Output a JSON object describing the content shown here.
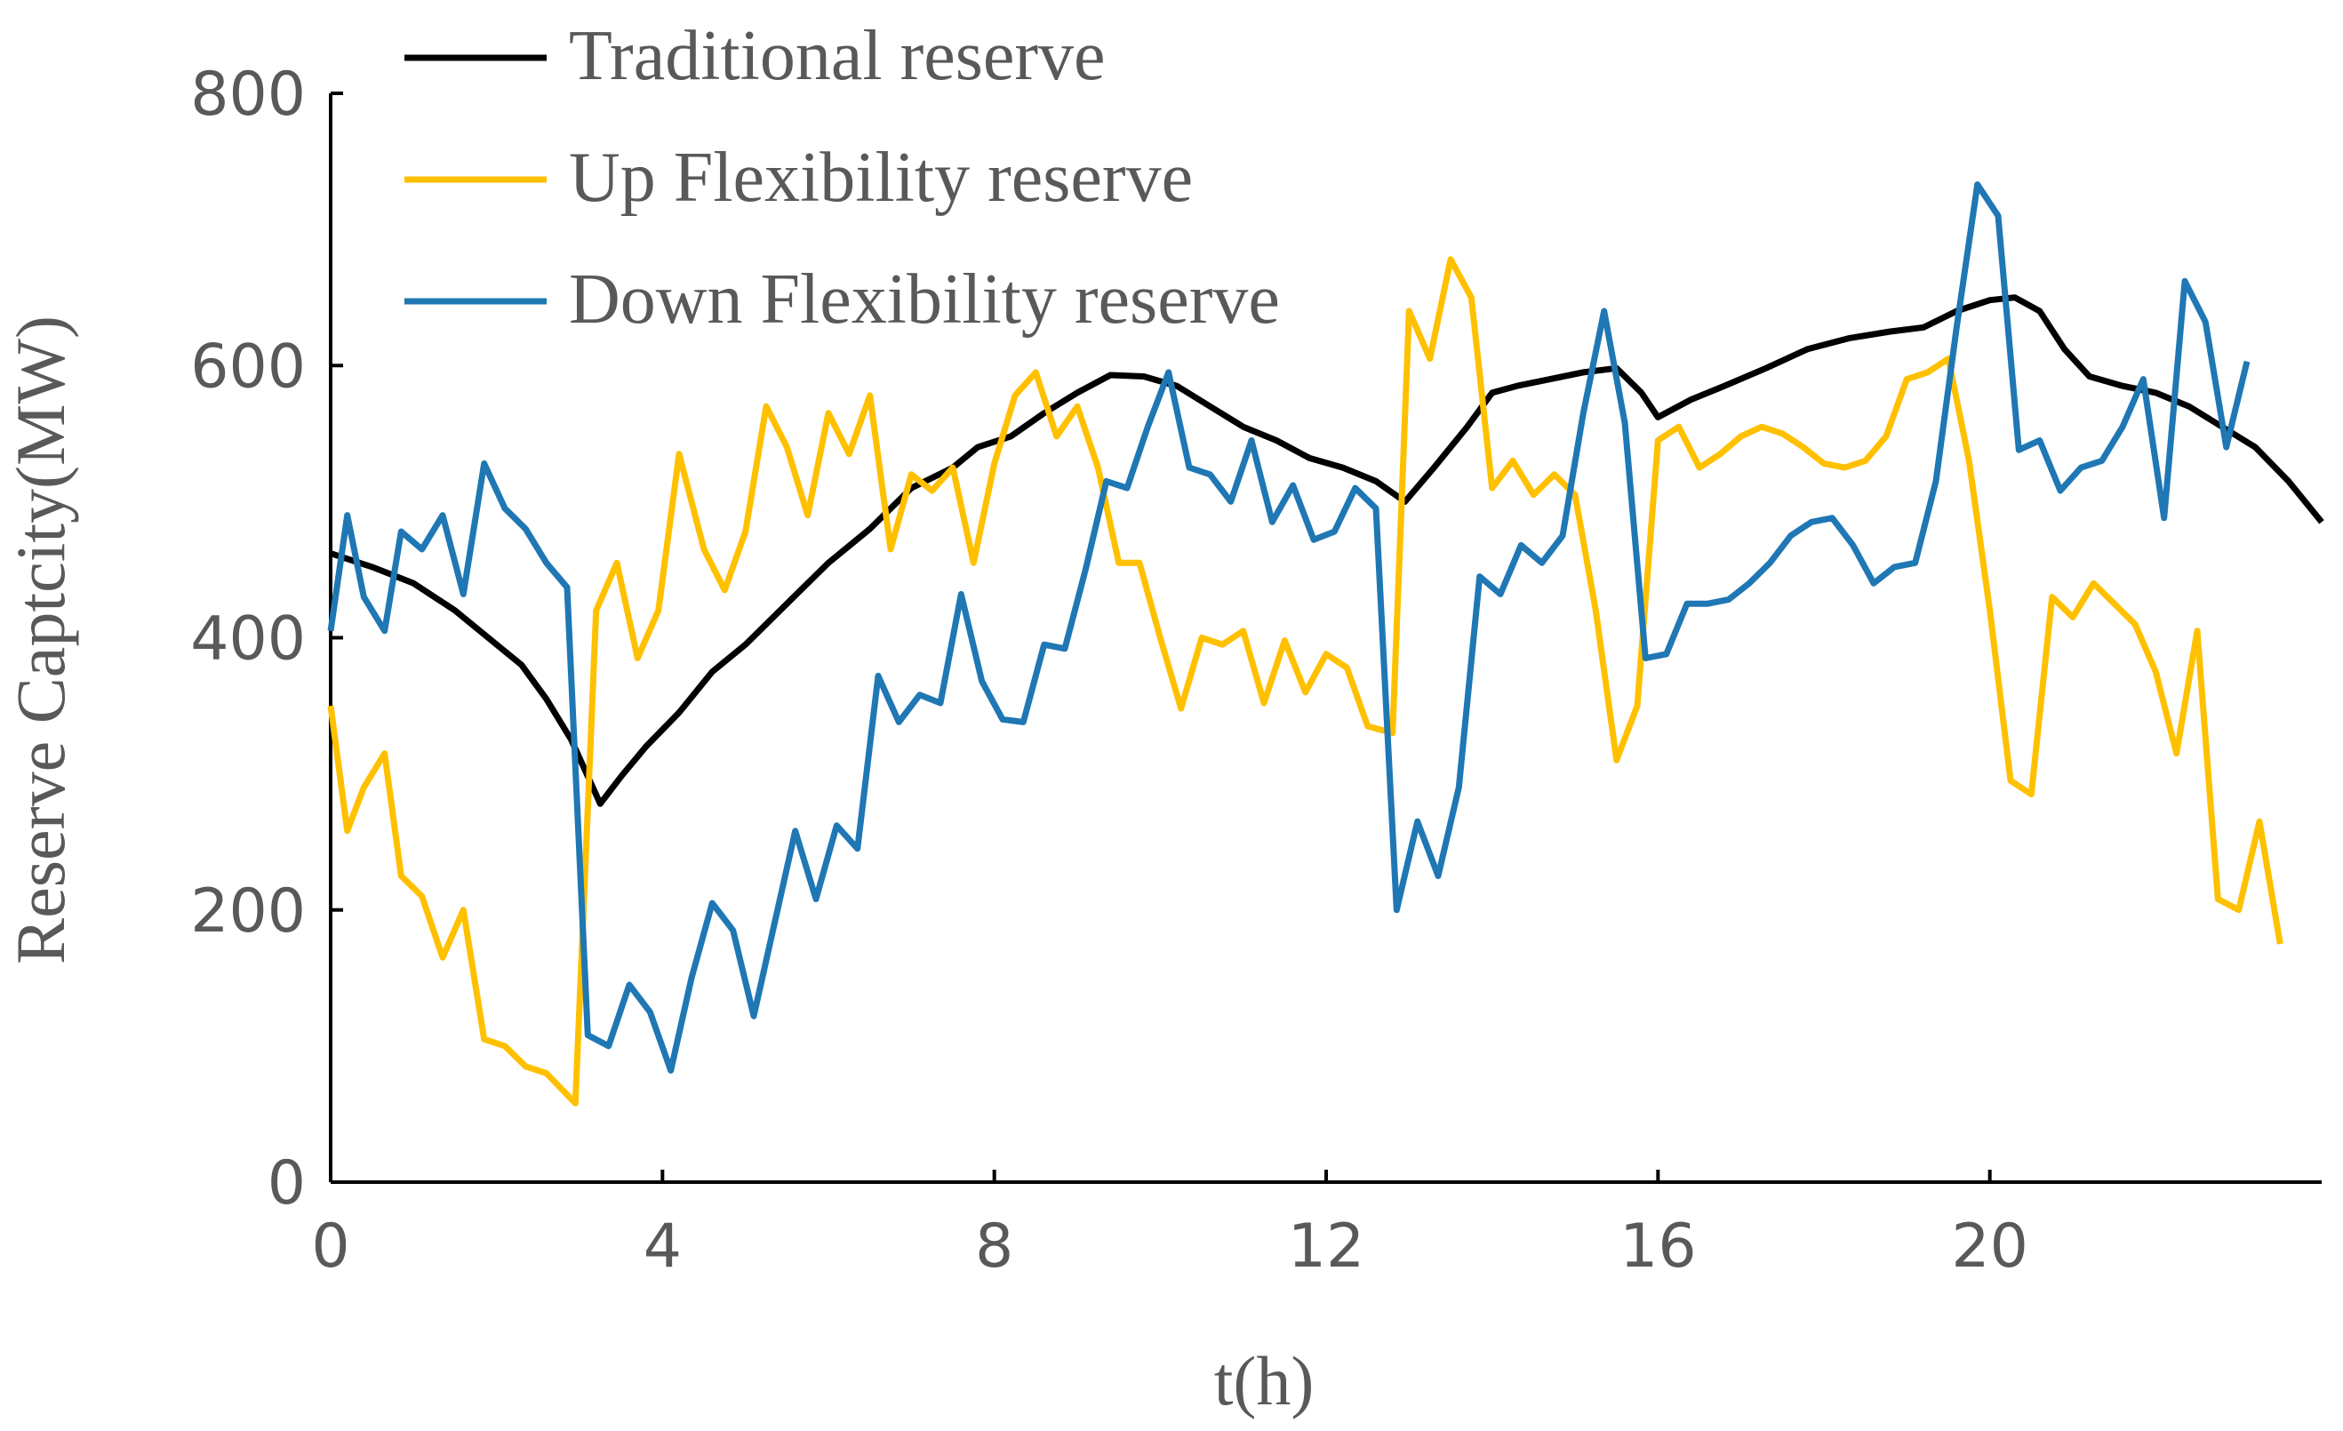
{
  "chart_data": {
    "type": "line",
    "title": "",
    "xlabel": "t(h)",
    "ylabel": "Reserve Captcity(MW)",
    "xlim": [
      0,
      24
    ],
    "ylim": [
      0,
      800
    ],
    "x_ticks": [
      0,
      4,
      8,
      12,
      16,
      20
    ],
    "x_tick_labels": [
      "0",
      "4",
      "8",
      "12",
      "16",
      "20"
    ],
    "y_ticks": [
      0,
      200,
      400,
      600,
      800
    ],
    "y_tick_labels": [
      "0",
      "200",
      "400",
      "600",
      "800"
    ],
    "grid": false,
    "legend_position": "top-left",
    "series": [
      {
        "name": "Traditional reserve",
        "color": "#000000",
        "points": [
          [
            0,
            462
          ],
          [
            0.5,
            452
          ],
          [
            1,
            440
          ],
          [
            1.5,
            420
          ],
          [
            2,
            395
          ],
          [
            2.3,
            380
          ],
          [
            2.6,
            355
          ],
          [
            2.9,
            325
          ],
          [
            3.25,
            278
          ],
          [
            3.5,
            298
          ],
          [
            3.8,
            320
          ],
          [
            4.2,
            345
          ],
          [
            4.6,
            375
          ],
          [
            5,
            395
          ],
          [
            5.5,
            425
          ],
          [
            6,
            455
          ],
          [
            6.5,
            480
          ],
          [
            7,
            510
          ],
          [
            7.5,
            525
          ],
          [
            7.8,
            540
          ],
          [
            8.2,
            548
          ],
          [
            8.6,
            565
          ],
          [
            9,
            580
          ],
          [
            9.4,
            593
          ],
          [
            9.8,
            592
          ],
          [
            10.2,
            585
          ],
          [
            10.6,
            570
          ],
          [
            11,
            555
          ],
          [
            11.4,
            545
          ],
          [
            11.8,
            532
          ],
          [
            12.2,
            525
          ],
          [
            12.6,
            515
          ],
          [
            12.95,
            500
          ],
          [
            13.3,
            525
          ],
          [
            13.7,
            555
          ],
          [
            14,
            580
          ],
          [
            14.3,
            585
          ],
          [
            14.7,
            590
          ],
          [
            15.1,
            595
          ],
          [
            15.5,
            598
          ],
          [
            15.8,
            580
          ],
          [
            16,
            562
          ],
          [
            16.4,
            575
          ],
          [
            16.8,
            585
          ],
          [
            17.3,
            598
          ],
          [
            17.8,
            612
          ],
          [
            18.3,
            620
          ],
          [
            18.8,
            625
          ],
          [
            19.2,
            628
          ],
          [
            19.6,
            640
          ],
          [
            20,
            648
          ],
          [
            20.3,
            650
          ],
          [
            20.6,
            640
          ],
          [
            20.9,
            612
          ],
          [
            21.2,
            592
          ],
          [
            21.6,
            585
          ],
          [
            22,
            580
          ],
          [
            22.4,
            570
          ],
          [
            22.8,
            555
          ],
          [
            23.2,
            540
          ],
          [
            23.6,
            515
          ],
          [
            24,
            485
          ]
        ]
      },
      {
        "name": "Up Flexibility reserve",
        "color": "#FFC000",
        "points": [
          [
            0,
            350
          ],
          [
            0.2,
            258
          ],
          [
            0.4,
            290
          ],
          [
            0.65,
            315
          ],
          [
            0.85,
            225
          ],
          [
            1.1,
            210
          ],
          [
            1.35,
            165
          ],
          [
            1.6,
            200
          ],
          [
            1.85,
            105
          ],
          [
            2.1,
            100
          ],
          [
            2.35,
            85
          ],
          [
            2.6,
            80
          ],
          [
            2.95,
            58
          ],
          [
            3.2,
            420
          ],
          [
            3.45,
            455
          ],
          [
            3.7,
            385
          ],
          [
            3.95,
            420
          ],
          [
            4.2,
            535
          ],
          [
            4.5,
            465
          ],
          [
            4.75,
            435
          ],
          [
            5,
            478
          ],
          [
            5.25,
            570
          ],
          [
            5.5,
            540
          ],
          [
            5.75,
            490
          ],
          [
            6,
            565
          ],
          [
            6.25,
            535
          ],
          [
            6.5,
            578
          ],
          [
            6.75,
            465
          ],
          [
            7,
            520
          ],
          [
            7.25,
            508
          ],
          [
            7.5,
            525
          ],
          [
            7.75,
            455
          ],
          [
            8,
            528
          ],
          [
            8.25,
            578
          ],
          [
            8.5,
            595
          ],
          [
            8.75,
            548
          ],
          [
            9,
            570
          ],
          [
            9.25,
            525
          ],
          [
            9.5,
            455
          ],
          [
            9.75,
            455
          ],
          [
            10,
            400
          ],
          [
            10.25,
            348
          ],
          [
            10.5,
            400
          ],
          [
            10.75,
            395
          ],
          [
            11,
            405
          ],
          [
            11.25,
            352
          ],
          [
            11.5,
            398
          ],
          [
            11.75,
            360
          ],
          [
            12,
            388
          ],
          [
            12.25,
            378
          ],
          [
            12.5,
            335
          ],
          [
            12.8,
            330
          ],
          [
            13,
            640
          ],
          [
            13.25,
            605
          ],
          [
            13.5,
            678
          ],
          [
            13.75,
            650
          ],
          [
            14,
            510
          ],
          [
            14.25,
            530
          ],
          [
            14.5,
            505
          ],
          [
            14.75,
            520
          ],
          [
            15,
            505
          ],
          [
            15.25,
            420
          ],
          [
            15.5,
            310
          ],
          [
            15.75,
            350
          ],
          [
            16,
            545
          ],
          [
            16.25,
            555
          ],
          [
            16.5,
            525
          ],
          [
            16.75,
            535
          ],
          [
            17,
            548
          ],
          [
            17.25,
            555
          ],
          [
            17.5,
            550
          ],
          [
            17.75,
            540
          ],
          [
            18,
            528
          ],
          [
            18.25,
            525
          ],
          [
            18.5,
            530
          ],
          [
            18.75,
            548
          ],
          [
            19,
            590
          ],
          [
            19.25,
            595
          ],
          [
            19.5,
            605
          ],
          [
            19.75,
            530
          ],
          [
            20,
            420
          ],
          [
            20.25,
            295
          ],
          [
            20.5,
            285
          ],
          [
            20.75,
            430
          ],
          [
            21,
            415
          ],
          [
            21.25,
            440
          ],
          [
            21.5,
            425
          ],
          [
            21.75,
            410
          ],
          [
            22,
            375
          ],
          [
            22.25,
            315
          ],
          [
            22.5,
            405
          ],
          [
            22.75,
            208
          ],
          [
            23,
            200
          ],
          [
            23.25,
            265
          ],
          [
            23.5,
            175
          ]
        ]
      },
      {
        "name": "Down Flexibility reserve",
        "color": "#1F77B4",
        "points": [
          [
            0,
            405
          ],
          [
            0.2,
            490
          ],
          [
            0.4,
            430
          ],
          [
            0.65,
            405
          ],
          [
            0.85,
            478
          ],
          [
            1.1,
            465
          ],
          [
            1.35,
            490
          ],
          [
            1.6,
            432
          ],
          [
            1.85,
            528
          ],
          [
            2.1,
            495
          ],
          [
            2.35,
            480
          ],
          [
            2.6,
            455
          ],
          [
            2.85,
            437
          ],
          [
            3.1,
            108
          ],
          [
            3.35,
            100
          ],
          [
            3.6,
            145
          ],
          [
            3.85,
            125
          ],
          [
            4.1,
            82
          ],
          [
            4.35,
            150
          ],
          [
            4.6,
            205
          ],
          [
            4.85,
            185
          ],
          [
            5.1,
            122
          ],
          [
            5.35,
            190
          ],
          [
            5.6,
            258
          ],
          [
            5.85,
            208
          ],
          [
            6.1,
            262
          ],
          [
            6.35,
            245
          ],
          [
            6.6,
            372
          ],
          [
            6.85,
            338
          ],
          [
            7.1,
            358
          ],
          [
            7.35,
            352
          ],
          [
            7.6,
            432
          ],
          [
            7.85,
            368
          ],
          [
            8.1,
            340
          ],
          [
            8.35,
            338
          ],
          [
            8.6,
            395
          ],
          [
            8.85,
            392
          ],
          [
            9.1,
            450
          ],
          [
            9.35,
            515
          ],
          [
            9.6,
            510
          ],
          [
            9.85,
            555
          ],
          [
            10.1,
            595
          ],
          [
            10.35,
            525
          ],
          [
            10.6,
            520
          ],
          [
            10.85,
            500
          ],
          [
            11.1,
            545
          ],
          [
            11.35,
            485
          ],
          [
            11.6,
            512
          ],
          [
            11.85,
            472
          ],
          [
            12.1,
            478
          ],
          [
            12.35,
            510
          ],
          [
            12.6,
            495
          ],
          [
            12.85,
            200
          ],
          [
            13.1,
            265
          ],
          [
            13.35,
            225
          ],
          [
            13.6,
            290
          ],
          [
            13.85,
            445
          ],
          [
            14.1,
            432
          ],
          [
            14.35,
            468
          ],
          [
            14.6,
            455
          ],
          [
            14.85,
            475
          ],
          [
            15.1,
            565
          ],
          [
            15.35,
            640
          ],
          [
            15.6,
            558
          ],
          [
            15.85,
            385
          ],
          [
            16.1,
            388
          ],
          [
            16.35,
            425
          ],
          [
            16.6,
            425
          ],
          [
            16.85,
            428
          ],
          [
            17.1,
            440
          ],
          [
            17.35,
            455
          ],
          [
            17.6,
            475
          ],
          [
            17.85,
            485
          ],
          [
            18.1,
            488
          ],
          [
            18.35,
            468
          ],
          [
            18.6,
            440
          ],
          [
            18.85,
            452
          ],
          [
            19.1,
            455
          ],
          [
            19.35,
            515
          ],
          [
            19.6,
            628
          ],
          [
            19.85,
            733
          ],
          [
            20.1,
            710
          ],
          [
            20.35,
            538
          ],
          [
            20.6,
            545
          ],
          [
            20.85,
            508
          ],
          [
            21.1,
            525
          ],
          [
            21.35,
            530
          ],
          [
            21.6,
            555
          ],
          [
            21.85,
            590
          ],
          [
            22.1,
            488
          ],
          [
            22.35,
            662
          ],
          [
            22.6,
            632
          ],
          [
            22.85,
            540
          ],
          [
            23.1,
            603
          ]
        ]
      }
    ]
  }
}
